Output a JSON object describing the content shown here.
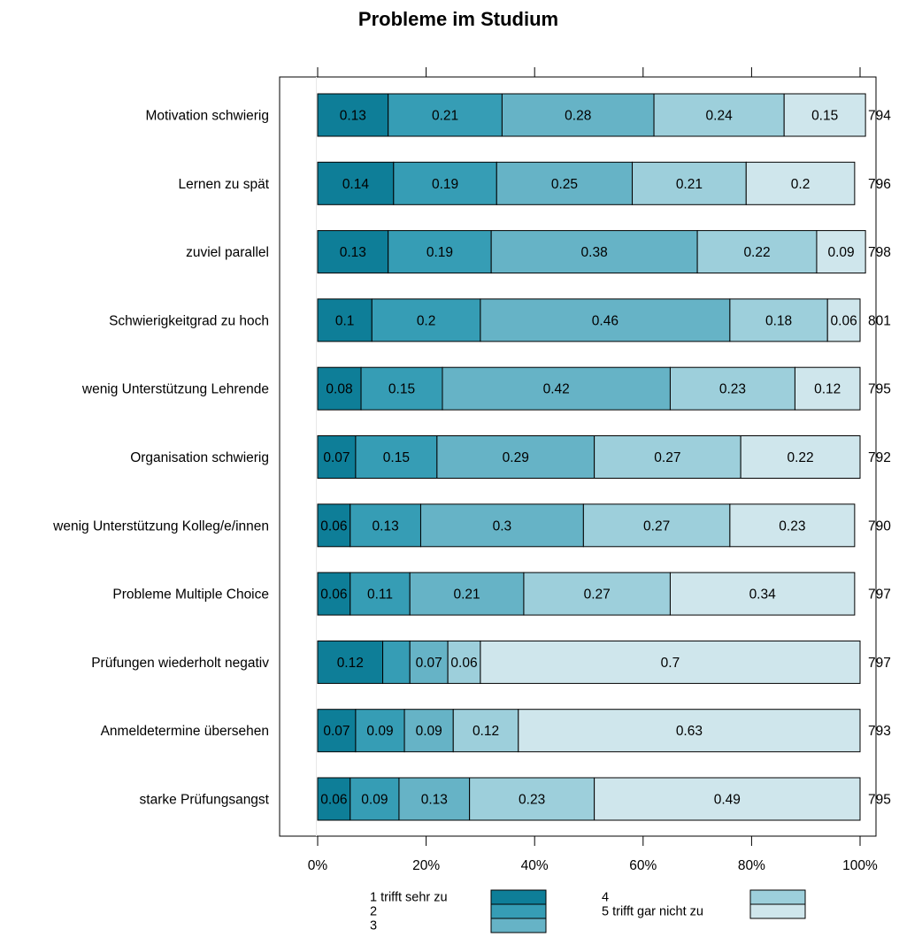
{
  "chart_data": {
    "type": "bar",
    "orientation": "horizontal",
    "stacked": true,
    "title": "Probleme im Studium",
    "xlabel": "",
    "ylabel": "",
    "xlim": [
      0,
      1
    ],
    "x_ticks": [
      0,
      0.2,
      0.4,
      0.6,
      0.8,
      1.0
    ],
    "x_tick_labels": [
      "0%",
      "20%",
      "40%",
      "60%",
      "80%",
      "100%"
    ],
    "grid": false,
    "legend_position": "bottom",
    "categories": [
      "Motivation schwierig",
      "Lernen zu spät",
      "zuviel parallel",
      "Schwierigkeitgrad zu hoch",
      "wenig Unterstützung Lehrende",
      "Organisation schwierig",
      "wenig Unterstützung Kolleg/e/innen",
      "Probleme Multiple Choice",
      "Prüfungen wiederholt negativ",
      "Anmeldetermine übersehen",
      "starke Prüfungsangst"
    ],
    "n": [
      "794",
      "796",
      "798",
      "801",
      "795",
      "792",
      "790",
      "797",
      "797",
      "793",
      "795"
    ],
    "series": [
      {
        "name": "1 trifft sehr zu",
        "color": "#0e7e98",
        "values": [
          0.13,
          0.14,
          0.13,
          0.1,
          0.08,
          0.07,
          0.06,
          0.06,
          0.12,
          0.07,
          0.06
        ],
        "labels": [
          "0.13",
          "0.14",
          "0.13",
          "0.1",
          "0.08",
          "0.07",
          "0.06",
          "0.06",
          "0.12",
          "0.07",
          "0.06"
        ]
      },
      {
        "name": "2",
        "color": "#369db5",
        "values": [
          0.21,
          0.19,
          0.19,
          0.2,
          0.15,
          0.15,
          0.13,
          0.11,
          0.05,
          0.09,
          0.09
        ],
        "labels": [
          "0.21",
          "0.19",
          "0.19",
          "0.2",
          "0.15",
          "0.15",
          "0.13",
          "0.11",
          "",
          "0.09",
          "0.09"
        ]
      },
      {
        "name": "3",
        "color": "#66b3c6",
        "values": [
          0.28,
          0.25,
          0.38,
          0.46,
          0.42,
          0.29,
          0.3,
          0.21,
          0.07,
          0.09,
          0.13
        ],
        "labels": [
          "0.28",
          "0.25",
          "0.38",
          "0.46",
          "0.42",
          "0.29",
          "0.3",
          "0.21",
          "0.07",
          "0.09",
          "0.13"
        ]
      },
      {
        "name": "4",
        "color": "#9dcfdb",
        "values": [
          0.24,
          0.21,
          0.22,
          0.18,
          0.23,
          0.27,
          0.27,
          0.27,
          0.06,
          0.12,
          0.23
        ],
        "labels": [
          "0.24",
          "0.21",
          "0.22",
          "0.18",
          "0.23",
          "0.27",
          "0.27",
          "0.27",
          "0.06",
          "0.12",
          "0.23"
        ]
      },
      {
        "name": "5 trifft gar nicht zu",
        "color": "#cfe6ec",
        "values": [
          0.15,
          0.2,
          0.09,
          0.06,
          0.12,
          0.22,
          0.23,
          0.34,
          0.7,
          0.63,
          0.49
        ],
        "labels": [
          "0.15",
          "0.2",
          "0.09",
          "0.06",
          "0.12",
          "0.22",
          "0.23",
          "0.34",
          "0.7",
          "0.63",
          "0.49"
        ]
      }
    ]
  }
}
